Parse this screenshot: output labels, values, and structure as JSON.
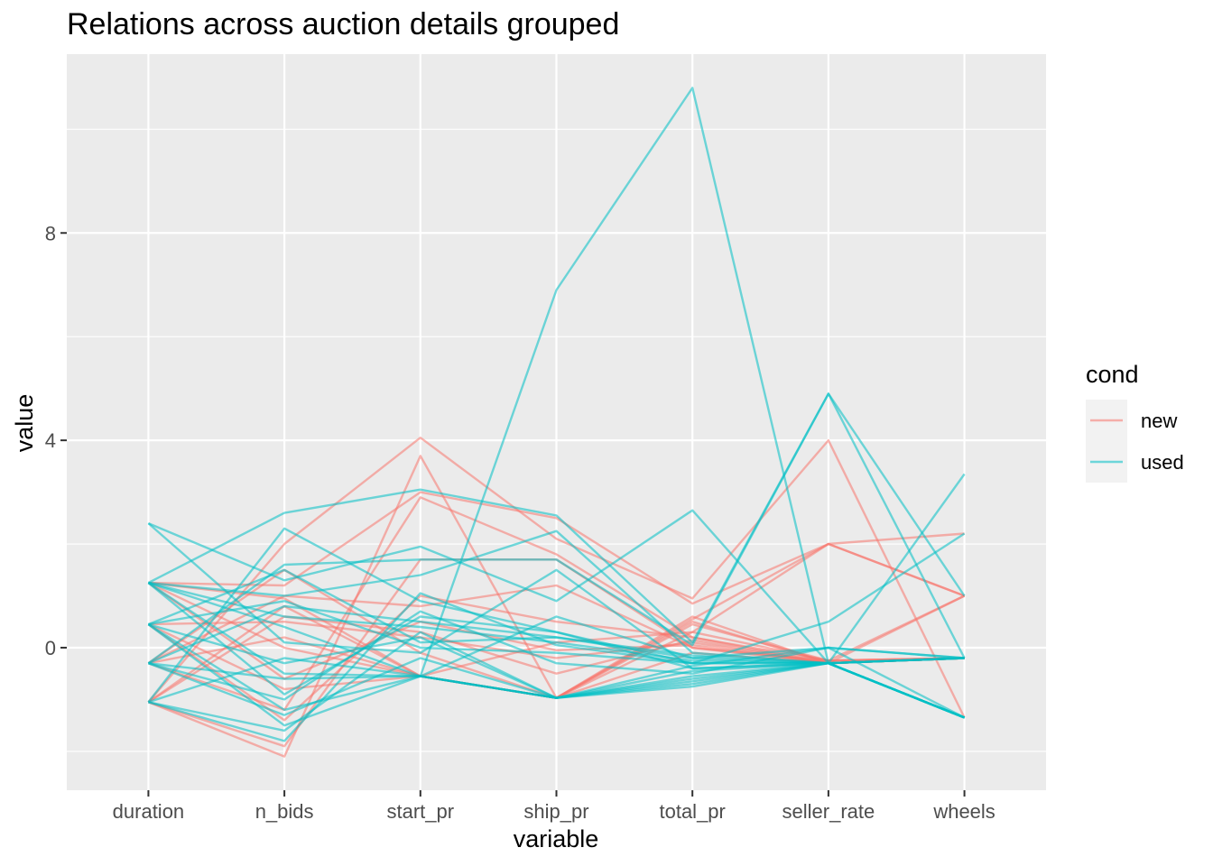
{
  "chart_data": {
    "type": "line",
    "subtype": "parallel-coordinates",
    "title": "Relations across auction details grouped",
    "xlabel": "variable",
    "ylabel": "value",
    "categories": [
      "duration",
      "n_bids",
      "start_pr",
      "ship_pr",
      "total_pr",
      "seller_rate",
      "wheels"
    ],
    "ylim": [
      -2.75,
      11.45
    ],
    "yticks": [
      0,
      4,
      8
    ],
    "y_tick_labels": [
      "0",
      "4",
      "8"
    ],
    "grid": true,
    "legend": {
      "title": "cond",
      "position": "right",
      "entries": [
        {
          "name": "new",
          "color": "#F8766D"
        },
        {
          "name": "used",
          "color": "#00BFC4"
        }
      ]
    },
    "series": [
      {
        "name": "new",
        "color": "#F8766D",
        "lines": [
          [
            -1.05,
            -2.1,
            3.7,
            -0.97,
            0.55,
            2.0,
            1.0
          ],
          [
            -1.05,
            2.0,
            4.05,
            2.1,
            0.95,
            4.0,
            -1.35
          ],
          [
            1.25,
            1.2,
            3.0,
            2.5,
            0.85,
            2.0,
            2.2
          ],
          [
            1.25,
            0.95,
            -0.55,
            -0.97,
            0.3,
            2.0,
            1.0
          ],
          [
            -0.3,
            -1.2,
            2.9,
            1.8,
            0.2,
            -0.25,
            -0.2
          ],
          [
            -1.05,
            -1.9,
            1.7,
            1.7,
            0.0,
            -0.25,
            -0.2
          ],
          [
            0.45,
            0.5,
            0.2,
            -0.2,
            0.1,
            -0.3,
            -0.2
          ],
          [
            -0.3,
            0.2,
            -0.55,
            -0.97,
            0.6,
            -0.3,
            -0.2
          ],
          [
            1.25,
            -0.6,
            0.5,
            -0.05,
            0.05,
            -0.3,
            -0.2
          ],
          [
            -1.05,
            0.8,
            -0.55,
            -0.97,
            0.45,
            -0.25,
            1.0
          ],
          [
            0.45,
            -1.4,
            1.0,
            0.5,
            0.2,
            -0.3,
            -0.2
          ],
          [
            -0.3,
            1.5,
            -0.1,
            -0.97,
            -0.1,
            -0.3,
            -0.2
          ],
          [
            1.25,
            0.0,
            -0.55,
            0.1,
            0.3,
            -0.25,
            -0.2
          ],
          [
            -1.05,
            0.6,
            0.3,
            -0.5,
            0.15,
            -0.3,
            -0.2
          ],
          [
            0.45,
            -0.8,
            -0.55,
            -0.97,
            0.5,
            -0.3,
            1.0
          ],
          [
            -0.3,
            1.0,
            0.8,
            1.2,
            0.0,
            -0.3,
            -0.2
          ]
        ]
      },
      {
        "name": "used",
        "color": "#00BFC4",
        "lines": [
          [
            0.45,
            -1.5,
            -0.55,
            6.9,
            10.8,
            -0.3,
            -1.35
          ],
          [
            2.4,
            1.3,
            1.95,
            0.9,
            2.65,
            -0.3,
            3.35
          ],
          [
            1.25,
            2.6,
            3.05,
            2.55,
            0.1,
            4.9,
            -0.2
          ],
          [
            -0.3,
            1.6,
            1.7,
            1.7,
            0.05,
            4.9,
            1.0
          ],
          [
            -1.05,
            -1.8,
            1.05,
            0.05,
            -0.3,
            0.5,
            2.2
          ],
          [
            1.25,
            1.0,
            1.4,
            2.25,
            -0.1,
            -0.3,
            -1.35
          ],
          [
            0.45,
            -1.2,
            -0.55,
            -0.97,
            -0.55,
            -0.3,
            -1.35
          ],
          [
            -0.3,
            0.8,
            0.5,
            0.2,
            -0.2,
            0.0,
            -0.2
          ],
          [
            1.25,
            -0.5,
            -0.55,
            -0.97,
            -0.6,
            -0.3,
            -1.35
          ],
          [
            2.4,
            0.1,
            -0.1,
            1.5,
            -0.4,
            -0.3,
            -0.2
          ],
          [
            -1.05,
            2.3,
            0.9,
            0.3,
            -0.3,
            -0.3,
            -1.35
          ],
          [
            0.45,
            -0.3,
            0.2,
            -0.97,
            -0.75,
            -0.3,
            -1.35
          ],
          [
            -0.3,
            -1.0,
            0.7,
            -0.3,
            -0.5,
            0.0,
            -0.2
          ],
          [
            1.25,
            0.4,
            -0.55,
            0.6,
            -0.2,
            -0.3,
            -1.35
          ],
          [
            -1.05,
            -1.6,
            0.3,
            -0.97,
            -0.7,
            -0.3,
            -1.35
          ],
          [
            0.45,
            1.5,
            0.1,
            0.2,
            -0.15,
            -0.3,
            -0.2
          ],
          [
            -0.3,
            -0.6,
            -0.55,
            -0.97,
            -0.35,
            0.0,
            -1.35
          ],
          [
            1.25,
            0.6,
            0.4,
            0.1,
            -0.25,
            -0.3,
            -0.2
          ],
          [
            -1.05,
            -0.2,
            -0.55,
            -0.97,
            -0.45,
            -0.3,
            -1.35
          ],
          [
            0.45,
            0.9,
            0.0,
            -0.1,
            -0.3,
            -0.3,
            -0.2
          ],
          [
            -0.3,
            -1.3,
            -0.2,
            -0.97,
            -0.65,
            -0.3,
            -1.35
          ],
          [
            1.25,
            -0.9,
            0.6,
            0.3,
            -0.4,
            -0.3,
            -0.2
          ]
        ]
      }
    ]
  }
}
